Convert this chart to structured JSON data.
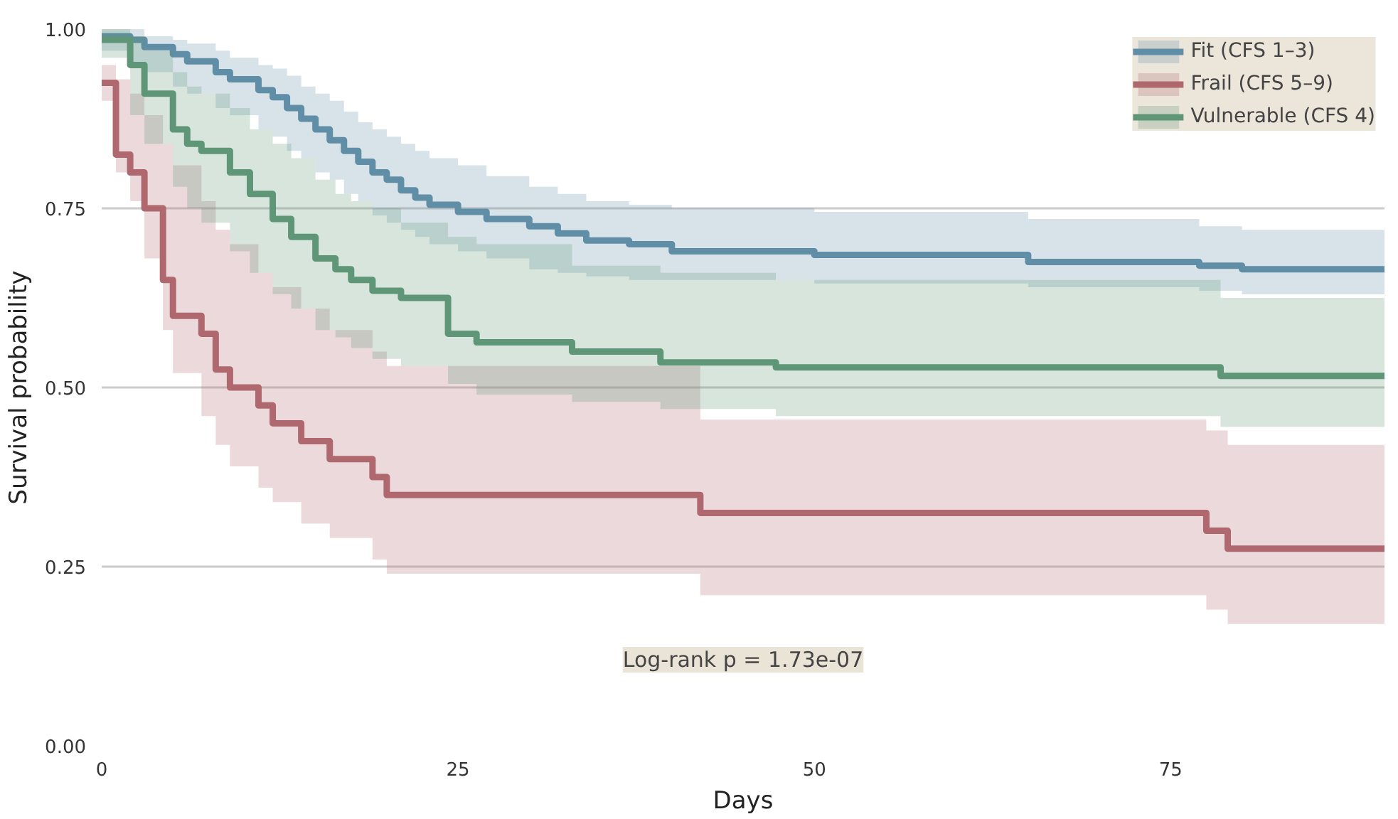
{
  "chart_data": {
    "type": "step",
    "xlabel": "Days",
    "ylabel": "Survival probability",
    "xlim": [
      0,
      90
    ],
    "ylim": [
      0,
      1
    ],
    "xticks": [
      0,
      25,
      50,
      75
    ],
    "yticks": [
      {
        "value": 0,
        "label": "0.00"
      },
      {
        "value": 0.25,
        "label": "0.25"
      },
      {
        "value": 0.5,
        "label": "0.50"
      },
      {
        "value": 0.75,
        "label": "0.75"
      },
      {
        "value": 1,
        "label": "1.00"
      }
    ],
    "grid": "y",
    "legend": "top right",
    "annotations": [
      "Log-rank p = 1.73e-07"
    ],
    "series": [
      {
        "name": "Fit (CFS 1–3)",
        "color": "#5f8ea6",
        "x": [
          0,
          2,
          3,
          5,
          6,
          8,
          9,
          11,
          12,
          13,
          14,
          15,
          16,
          17,
          18,
          19,
          20,
          21,
          22,
          23,
          25,
          27,
          30,
          32,
          34,
          37,
          40,
          50,
          65,
          77,
          80,
          90
        ],
        "values": [
          0.99,
          0.985,
          0.975,
          0.965,
          0.955,
          0.94,
          0.93,
          0.915,
          0.905,
          0.89,
          0.875,
          0.86,
          0.845,
          0.83,
          0.815,
          0.8,
          0.79,
          0.775,
          0.765,
          0.755,
          0.745,
          0.735,
          0.725,
          0.715,
          0.705,
          0.7,
          0.69,
          0.685,
          0.675,
          0.67,
          0.665,
          0.665
        ],
        "lower": [
          0.97,
          0.95,
          0.94,
          0.92,
          0.91,
          0.89,
          0.88,
          0.86,
          0.85,
          0.83,
          0.82,
          0.8,
          0.79,
          0.77,
          0.76,
          0.74,
          0.73,
          0.72,
          0.71,
          0.7,
          0.69,
          0.68,
          0.665,
          0.66,
          0.655,
          0.65,
          0.65,
          0.645,
          0.64,
          0.635,
          0.63,
          0.625
        ],
        "upper": [
          1.0,
          1.0,
          0.99,
          0.985,
          0.98,
          0.97,
          0.96,
          0.95,
          0.945,
          0.935,
          0.92,
          0.91,
          0.9,
          0.885,
          0.87,
          0.86,
          0.85,
          0.84,
          0.83,
          0.82,
          0.81,
          0.795,
          0.78,
          0.77,
          0.76,
          0.755,
          0.75,
          0.745,
          0.735,
          0.725,
          0.72,
          0.715
        ]
      },
      {
        "name": "Frail (CFS 5–9)",
        "color": "#b0686f",
        "x": [
          0,
          1,
          2,
          3,
          4.3,
          5,
          7,
          8,
          9,
          11,
          12,
          14,
          16,
          19,
          20,
          42,
          77.5,
          79,
          90
        ],
        "values": [
          0.925,
          0.825,
          0.8,
          0.75,
          0.65,
          0.6,
          0.575,
          0.525,
          0.5,
          0.475,
          0.45,
          0.425,
          0.4,
          0.375,
          0.35,
          0.325,
          0.3,
          0.275,
          0.275
        ],
        "lower": [
          0.9,
          0.8,
          0.76,
          0.68,
          0.58,
          0.52,
          0.46,
          0.42,
          0.39,
          0.36,
          0.34,
          0.31,
          0.29,
          0.26,
          0.24,
          0.21,
          0.19,
          0.17,
          0.16
        ],
        "upper": [
          0.95,
          0.93,
          0.91,
          0.88,
          0.84,
          0.81,
          0.76,
          0.72,
          0.7,
          0.66,
          0.64,
          0.61,
          0.58,
          0.55,
          0.53,
          0.455,
          0.44,
          0.42,
          0.415
        ]
      },
      {
        "name": "Vulnerable (CFS 4)",
        "color": "#5e9677",
        "x": [
          0,
          2,
          3,
          5,
          6,
          7,
          9,
          10.4,
          12,
          13.3,
          15,
          16.4,
          17.5,
          19,
          21,
          24.3,
          26.3,
          33,
          39.2,
          47.3,
          78.5,
          90
        ],
        "values": [
          0.985,
          0.95,
          0.91,
          0.86,
          0.84,
          0.83,
          0.8,
          0.77,
          0.735,
          0.71,
          0.68,
          0.665,
          0.65,
          0.635,
          0.625,
          0.575,
          0.563,
          0.55,
          0.535,
          0.528,
          0.516,
          0.516
        ],
        "lower": [
          0.96,
          0.88,
          0.84,
          0.78,
          0.75,
          0.73,
          0.69,
          0.66,
          0.63,
          0.61,
          0.58,
          0.57,
          0.555,
          0.54,
          0.53,
          0.505,
          0.49,
          0.48,
          0.47,
          0.46,
          0.445,
          0.44
        ],
        "upper": [
          1.0,
          0.99,
          0.97,
          0.94,
          0.92,
          0.91,
          0.89,
          0.86,
          0.84,
          0.82,
          0.79,
          0.77,
          0.76,
          0.75,
          0.73,
          0.71,
          0.7,
          0.67,
          0.66,
          0.65,
          0.625,
          0.62
        ]
      }
    ]
  }
}
